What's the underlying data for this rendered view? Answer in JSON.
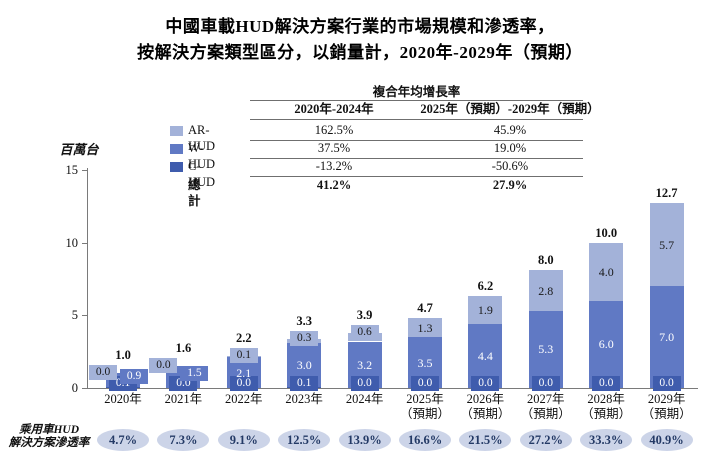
{
  "title": {
    "line1": "中國車載HUD解決方案行業的市場規模和滲透率，",
    "line2": "按解決方案類型區分，以銷量計，2020年-2029年（預期）"
  },
  "cagr_table": {
    "header": "複合年均增長率",
    "columns": [
      "2020年-2024年",
      "2025年（預期）-2029年（預期）"
    ],
    "rows": [
      {
        "label": "AR-HUD",
        "values": [
          "162.5%",
          "45.9%"
        ],
        "bold": false
      },
      {
        "label": "W-HUD",
        "values": [
          "37.5%",
          "19.0%"
        ],
        "bold": false
      },
      {
        "label": "C-HUD",
        "values": [
          "-13.2%",
          "-50.6%"
        ],
        "bold": false
      },
      {
        "label": "總計",
        "values": [
          "41.2%",
          "27.9%"
        ],
        "bold": true
      }
    ]
  },
  "legend": [
    {
      "label": "AR-HUD",
      "color": "#a3b2d9"
    },
    {
      "label": "W-HUD",
      "color": "#6079c4"
    },
    {
      "label": "C-HUD",
      "color": "#3f5cad"
    }
  ],
  "total_label": "總計",
  "y_axis": {
    "unit": "百萬台",
    "ticks": [
      0,
      5,
      10,
      15
    ],
    "max": 15
  },
  "chart_data": {
    "type": "bar",
    "stacked": true,
    "stack_order": "bottom-to-top",
    "title": "中國車載HUD解決方案行業的市場規模和滲透率，按解決方案類型區分，以銷量計，2020年-2029年（預期）",
    "ylabel": "百萬台",
    "ylim": [
      0,
      15
    ],
    "grid": false,
    "categories": [
      {
        "line1": "2020年",
        "line2": ""
      },
      {
        "line1": "2021年",
        "line2": ""
      },
      {
        "line1": "2022年",
        "line2": ""
      },
      {
        "line1": "2023年",
        "line2": ""
      },
      {
        "line1": "2024年",
        "line2": ""
      },
      {
        "line1": "2025年",
        "line2": "（預期）"
      },
      {
        "line1": "2026年",
        "line2": "（預期）"
      },
      {
        "line1": "2027年",
        "line2": "（預期）"
      },
      {
        "line1": "2028年",
        "line2": "（預期）"
      },
      {
        "line1": "2029年",
        "line2": "（預期）"
      }
    ],
    "series": [
      {
        "name": "C-HUD",
        "color": "#3f5cad",
        "values": [
          0.1,
          0.0,
          0.0,
          0.1,
          0.0,
          0.0,
          0.0,
          0.0,
          0.0,
          0.0
        ]
      },
      {
        "name": "W-HUD",
        "color": "#6079c4",
        "values": [
          0.9,
          1.5,
          2.1,
          3.0,
          3.2,
          3.5,
          4.4,
          5.3,
          6.0,
          7.0
        ]
      },
      {
        "name": "AR-HUD",
        "color": "#a3b2d9",
        "values": [
          0.0,
          0.0,
          0.1,
          0.3,
          0.6,
          1.3,
          1.9,
          2.8,
          4.0,
          5.7
        ]
      }
    ],
    "totals": [
      1.0,
      1.6,
      2.2,
      3.3,
      3.9,
      4.7,
      6.2,
      8.0,
      10.0,
      12.7
    ]
  },
  "penetration": {
    "label_line1": "乘用車HUD",
    "label_line2": "解決方案滲透率",
    "badge_fill": "#ccd4e8",
    "badge_text_color": "#243a66",
    "values": [
      "4.7%",
      "7.3%",
      "9.1%",
      "12.5%",
      "13.9%",
      "16.6%",
      "21.5%",
      "27.2%",
      "33.3%",
      "40.9%"
    ]
  }
}
